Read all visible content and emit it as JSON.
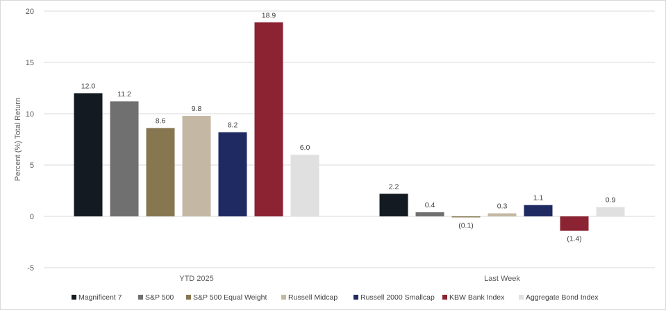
{
  "chart_data": {
    "type": "bar",
    "title": "",
    "xlabel": "",
    "ylabel": "Percent (%) Total Return",
    "ylim": [
      -5,
      20
    ],
    "yticks": [
      -5,
      0,
      5,
      10,
      15,
      20
    ],
    "grid": true,
    "legend_position": "bottom",
    "categories": [
      "YTD 2025",
      "Last Week"
    ],
    "series": [
      {
        "name": "Magnificent 7",
        "color": "#131a22",
        "values": [
          12.0,
          2.2
        ],
        "labels": [
          "12.0",
          "2.2"
        ]
      },
      {
        "name": "S&P 500",
        "color": "#707070",
        "values": [
          11.2,
          0.4
        ],
        "labels": [
          "11.2",
          "0.4"
        ]
      },
      {
        "name": "S&P 500 Equal Weight",
        "color": "#877750",
        "values": [
          8.6,
          -0.1
        ],
        "labels": [
          "8.6",
          "(0.1)"
        ]
      },
      {
        "name": "Russell Midcap",
        "color": "#c4b8a4",
        "values": [
          9.8,
          0.3
        ],
        "labels": [
          "9.8",
          "0.3"
        ]
      },
      {
        "name": "Russell 2000 Smallcap",
        "color": "#1f2a63",
        "values": [
          8.2,
          1.1
        ],
        "labels": [
          "8.2",
          "1.1"
        ]
      },
      {
        "name": "KBW Bank Index",
        "color": "#8b2332",
        "values": [
          18.9,
          -1.4
        ],
        "labels": [
          "18.9",
          "(1.4)"
        ]
      },
      {
        "name": "Aggregate Bond Index",
        "color": "#e0e0e0",
        "values": [
          6.0,
          0.9
        ],
        "labels": [
          "6.0",
          "0.9"
        ]
      }
    ]
  }
}
